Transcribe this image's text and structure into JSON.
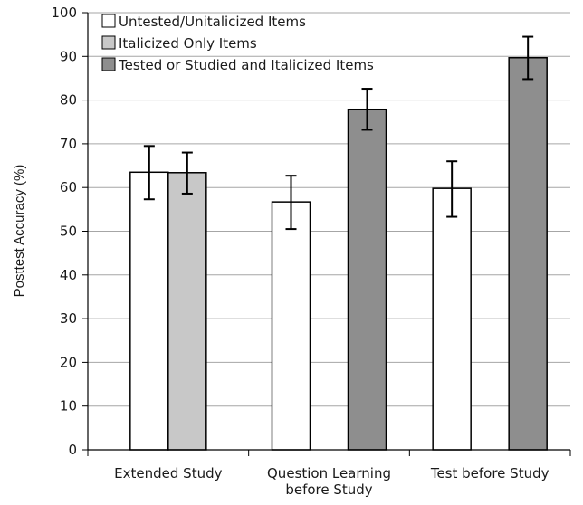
{
  "chart_data": {
    "type": "bar",
    "title": "",
    "xlabel": "",
    "ylabel": "Posttest Accuracy (%)",
    "ylim": [
      0,
      100
    ],
    "yticks": [
      0,
      10,
      20,
      30,
      40,
      50,
      60,
      70,
      80,
      90,
      100
    ],
    "grid": true,
    "legend_position": "top-left",
    "categories": [
      [
        "Extended Study"
      ],
      [
        "Question Learning",
        "before Study"
      ],
      [
        "Test before Study"
      ]
    ],
    "series": [
      {
        "name": "Untested/Unitalicized Items",
        "color": "#ffffff",
        "values": [
          63.5,
          56.7,
          59.8
        ],
        "error": [
          [
            57.3,
            69.5
          ],
          [
            50.5,
            62.7
          ],
          [
            53.3,
            66.0
          ]
        ]
      },
      {
        "name": "Italicized Only Items",
        "color": "#c8c8c8",
        "values": [
          63.4,
          null,
          null
        ],
        "error": [
          [
            58.6,
            68.0
          ],
          null,
          null
        ]
      },
      {
        "name": "Tested or Studied and Italicized Items",
        "color": "#8e8e8e",
        "values": [
          null,
          77.9,
          89.7
        ],
        "error": [
          null,
          [
            73.2,
            82.6
          ],
          [
            84.8,
            94.5
          ]
        ]
      }
    ]
  }
}
